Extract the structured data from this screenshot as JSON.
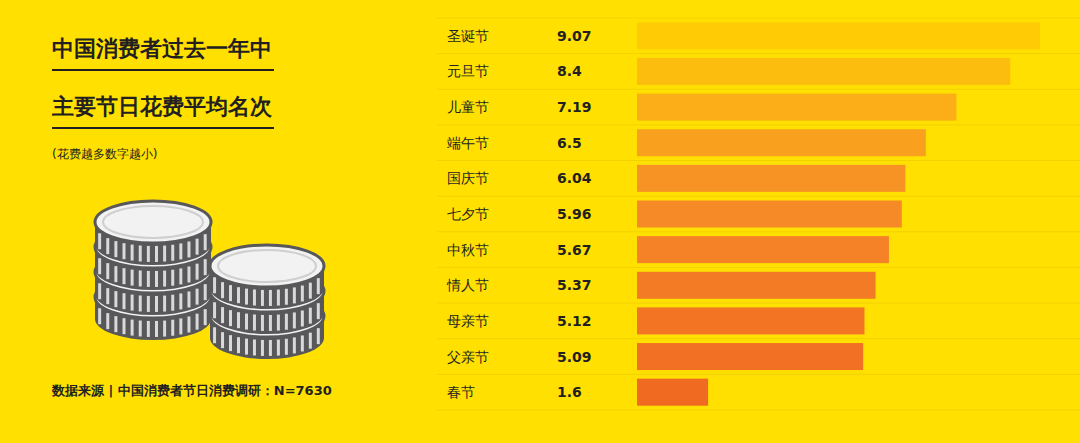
{
  "chart_data": {
    "type": "bar",
    "orientation": "horizontal",
    "title": "中国消费者过去一年中\n主要节日花费平均名次",
    "subtitle": "(花费越多数字越小)",
    "source": "数据来源 | 中国消费者节日消费调研：N=7630",
    "categories": [
      "圣诞节",
      "元旦节",
      "儿童节",
      "端午节",
      "国庆节",
      "七夕节",
      "中秋节",
      "情人节",
      "母亲节",
      "父亲节",
      "春节"
    ],
    "values": [
      9.07,
      8.4,
      7.19,
      6.5,
      6.04,
      5.96,
      5.67,
      5.37,
      5.12,
      5.09,
      1.6
    ],
    "colors": [
      "#FFCB05",
      "#FDBD0F",
      "#FBAE17",
      "#F9A01E",
      "#F79325",
      "#F68A27",
      "#F58226",
      "#F47B25",
      "#F37524",
      "#F27023",
      "#F06A22"
    ],
    "xlim": [
      0,
      9.07
    ],
    "data_labels": true,
    "tick_labels": false,
    "grid": false
  }
}
